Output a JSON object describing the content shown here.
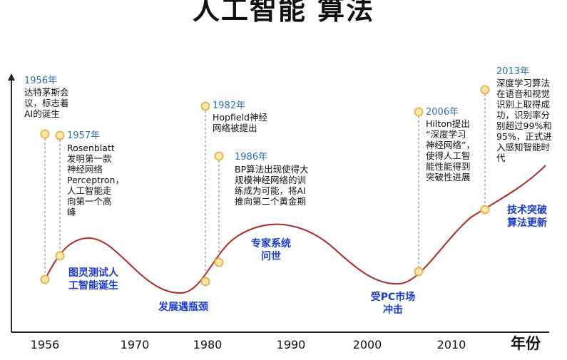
{
  "title": "人工智能 算法",
  "x_axis": {
    "unit_label": "年份",
    "ticks": [
      "1956",
      "1970",
      "1980",
      "1990",
      "2000",
      "2010"
    ]
  },
  "events": [
    {
      "year": "1956年",
      "text": "达特茅斯会\n议，标志着\nAI的诞生"
    },
    {
      "year": "1957年",
      "text": "Rosenblatt\n发明第一款\n神经网络\nPerceptron，\n人工智能走\n向第一个高\n峰"
    },
    {
      "year": "1982年",
      "text": "Hopfield神经\n网络被提出"
    },
    {
      "year": "1986年",
      "text": "BP算法出现使得大\n规模神经网络的训\n练成为可能，将AI\n推向第二个黄金期"
    },
    {
      "year": "2006年",
      "text": "Hilton提出\n“深度学习\n神经网络”，\n使得人工智\n能性能得到\n突破性进展"
    },
    {
      "year": "2013年",
      "text": "深度学习算法\n在语音和视觉\n识别上取得成\n功，识别率分\n别超过99%和\n95%，正式进\n入感知智能时\n代"
    }
  ],
  "phases": [
    {
      "label": "图灵测试人\n工智能诞生"
    },
    {
      "label": "发展遇瓶颈"
    },
    {
      "label": "专家系统\n问世"
    },
    {
      "label": "受PC市场\n冲击"
    },
    {
      "label": "技术突破\n算法更新"
    }
  ],
  "colors": {
    "curve": "#b02a2a",
    "marker_fill": "#f7e9b0",
    "marker_stroke": "#e8b84a",
    "event_year": "#2f6db4",
    "phase_label": "#1b39d6",
    "axis": "#222222",
    "dashed_line": "#777777"
  }
}
